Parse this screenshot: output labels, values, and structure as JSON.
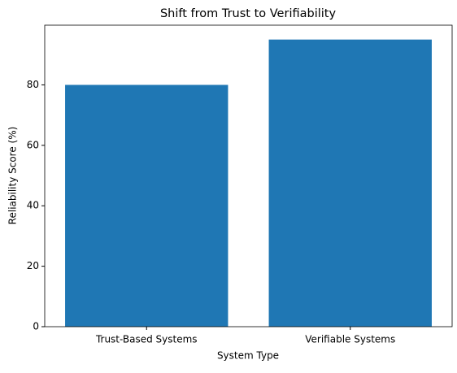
{
  "chart_data": {
    "type": "bar",
    "title": "Shift from Trust to Verifiability",
    "x_label": "System Type",
    "y_label": "Reliability Score (%)",
    "categories": [
      "Trust-Based Systems",
      "Verifiable Systems"
    ],
    "values": [
      80,
      95
    ],
    "color": "#1f77b4",
    "ylim": [
      0,
      99.75
    ],
    "yticks": [
      0,
      20,
      40,
      60,
      80
    ],
    "grid": false
  }
}
